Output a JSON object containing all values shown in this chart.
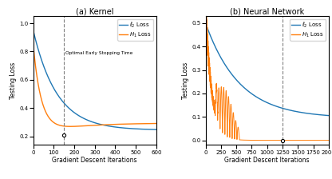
{
  "panel_a_title": "(a) Kernel",
  "panel_b_title": "(b) Neural Network",
  "xlabel": "Gradient Descent Iterations",
  "ylabel": "Testing Loss",
  "legend_l2": "$\\ell_2$ Loss",
  "legend_h1": "$H_1$ Loss",
  "annotation_text": "Optimal Early Stopping Time",
  "color_l2": "#1f77b4",
  "color_h1": "#ff7f0e",
  "panel_a_vline": 150,
  "panel_a_xlim": [
    0,
    600
  ],
  "panel_a_ylim": [
    0.14,
    1.05
  ],
  "panel_b_vline": 1250,
  "panel_b_xlim": [
    0,
    2000
  ],
  "panel_b_ylim": [
    -0.02,
    0.53
  ]
}
